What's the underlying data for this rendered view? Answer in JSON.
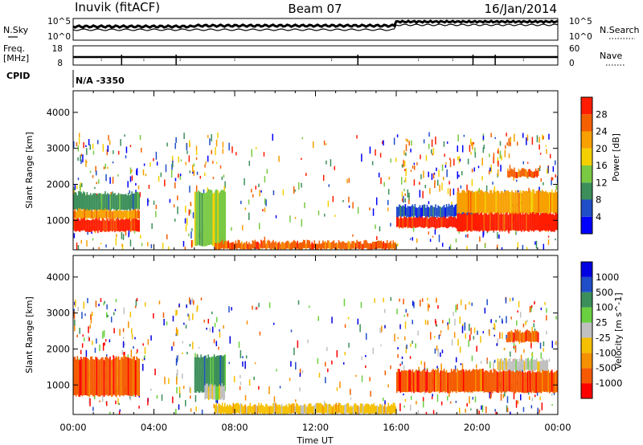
{
  "header": {
    "station": "Inuvik (fitACF)",
    "beam": "Beam 07",
    "date": "16/Jan/2014"
  },
  "strip_panels": {
    "nsky_label": "N.Sky",
    "nsearch_label": "N.Search",
    "nsky_ticks": [
      "10^5",
      "10^0"
    ],
    "nsearch_ticks": [
      "10^5",
      "10^0"
    ],
    "freq_label_1": "Freq.",
    "freq_label_2": "[MHz]",
    "freq_ticks": [
      "18",
      "8"
    ],
    "nave_label": "Nave",
    "nave_ticks": [
      "60",
      "0"
    ],
    "cpid_label": "CPID",
    "cpid_value": "N/A -3350"
  },
  "colors": {
    "power": [
      "#0000ff",
      "#1f4ec8",
      "#3c8f5a",
      "#7ac943",
      "#f5d000",
      "#f7a000",
      "#f46000",
      "#ff1c00"
    ],
    "velocity": [
      "#ff0000",
      "#f55a00",
      "#f59000",
      "#f5c000",
      "#c0c0c0",
      "#6ad040",
      "#3c8f5a",
      "#1f4ec8",
      "#0000e0"
    ]
  },
  "chart_data": [
    {
      "type": "heatmap",
      "name": "Power",
      "ylabel": "Slant Range [km]",
      "xlabel": "Time UT",
      "x_ticks": [
        "00:00",
        "04:00",
        "08:00",
        "12:00",
        "16:00",
        "20:00",
        "00:00"
      ],
      "y_ticks": [
        "1000",
        "2000",
        "3000",
        "4000"
      ],
      "ylim": [
        180,
        4600
      ],
      "xlim_hours": [
        0,
        24
      ],
      "colorbar_label": "Power [dB]",
      "colorbar_ticks": [
        "4",
        "8",
        "12",
        "16",
        "20",
        "24",
        "28"
      ],
      "regions": [
        {
          "t0": 0.0,
          "t1": 3.3,
          "r0": 700,
          "r1": 1050,
          "c": 7
        },
        {
          "t0": 0.0,
          "t1": 3.3,
          "r0": 1050,
          "r1": 1300,
          "c": 5
        },
        {
          "t0": 0.0,
          "t1": 3.3,
          "r0": 1300,
          "r1": 1750,
          "c": 2
        },
        {
          "t0": 6.0,
          "t1": 7.5,
          "r0": 300,
          "r1": 1800,
          "c": 3
        },
        {
          "t0": 7.0,
          "t1": 16.0,
          "r0": 200,
          "r1": 400,
          "c": 6
        },
        {
          "t0": 16.0,
          "t1": 20.0,
          "r0": 800,
          "r1": 1100,
          "c": 7
        },
        {
          "t0": 16.0,
          "t1": 20.0,
          "r0": 1100,
          "r1": 1400,
          "c": 1
        },
        {
          "t0": 19.0,
          "t1": 24.0,
          "r0": 700,
          "r1": 1200,
          "c": 7
        },
        {
          "t0": 19.0,
          "t1": 24.0,
          "r0": 1200,
          "r1": 1800,
          "c": 5
        },
        {
          "t0": 21.5,
          "t1": 23.0,
          "r0": 2200,
          "r1": 2400,
          "c": 6
        }
      ]
    },
    {
      "type": "heatmap",
      "name": "Velocity",
      "ylabel": "Slant Range [km]",
      "xlabel": "Time UT",
      "x_ticks": [
        "00:00",
        "04:00",
        "08:00",
        "12:00",
        "16:00",
        "20:00",
        "00:00"
      ],
      "y_ticks": [
        "1000",
        "2000",
        "3000",
        "4000"
      ],
      "ylim": [
        180,
        4600
      ],
      "xlim_hours": [
        0,
        24
      ],
      "colorbar_label": "Velocity [m s^-1]",
      "colorbar_ticks": [
        "1000",
        "500",
        "100",
        "25",
        "-25",
        "-100",
        "-500",
        "-1000"
      ],
      "regions": [
        {
          "t0": 0.0,
          "t1": 3.3,
          "r0": 700,
          "r1": 1750,
          "c": 1
        },
        {
          "t0": 6.0,
          "t1": 7.5,
          "r0": 800,
          "r1": 1800,
          "c": 6
        },
        {
          "t0": 6.5,
          "t1": 7.5,
          "r0": 600,
          "r1": 1000,
          "c": 4
        },
        {
          "t0": 7.0,
          "t1": 16.0,
          "r0": 200,
          "r1": 450,
          "c": 3
        },
        {
          "t0": 16.0,
          "t1": 24.0,
          "r0": 800,
          "r1": 1400,
          "c": 1
        },
        {
          "t0": 21.0,
          "t1": 23.5,
          "r0": 1400,
          "r1": 1700,
          "c": 4
        },
        {
          "t0": 21.5,
          "t1": 23.0,
          "r0": 2200,
          "r1": 2500,
          "c": 1
        }
      ]
    }
  ]
}
